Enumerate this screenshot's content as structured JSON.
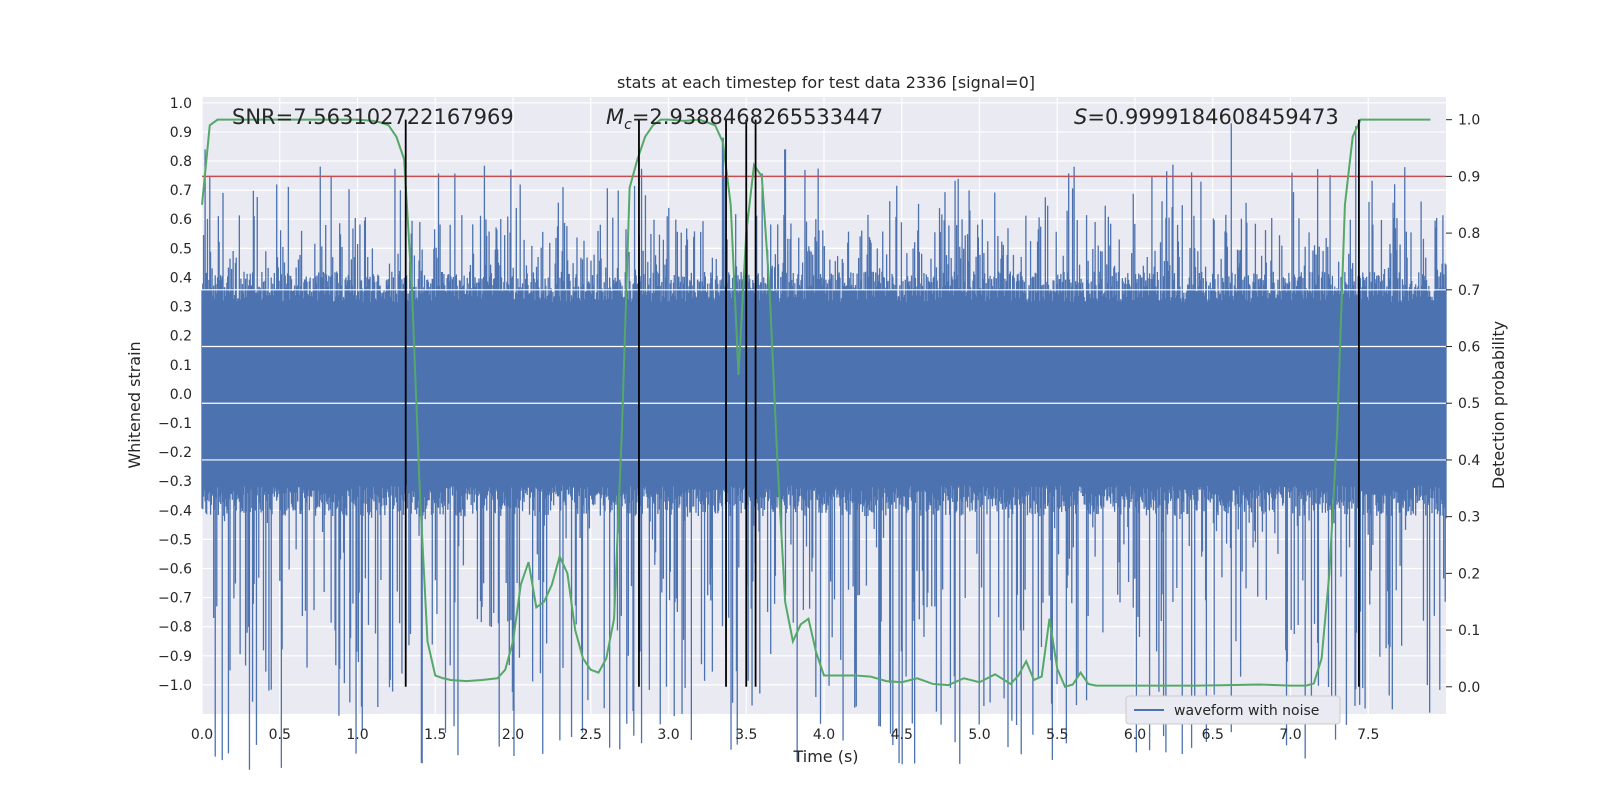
{
  "chart_data": {
    "type": "line",
    "title": "stats at each timestep for test data 2336 [signal=0]",
    "xlabel": "Time (s)",
    "ylabel": "Whitened strain",
    "y2label": "Detection probability",
    "xlim": [
      0.0,
      8.0
    ],
    "ylim": [
      -1.1,
      1.02
    ],
    "y2lim": [
      -0.048,
      1.04
    ],
    "xticks": [
      "0.0",
      "0.5",
      "1.0",
      "1.5",
      "2.0",
      "2.5",
      "3.0",
      "3.5",
      "4.0",
      "4.5",
      "5.0",
      "5.5",
      "6.0",
      "6.5",
      "7.0",
      "7.5"
    ],
    "yticks": [
      "1.0",
      "0.9",
      "0.8",
      "0.7",
      "0.6",
      "0.5",
      "0.4",
      "0.3",
      "0.2",
      "0.1",
      "0.0",
      "−0.1",
      "−0.2",
      "−0.3",
      "−0.4",
      "−0.5",
      "−0.6",
      "−0.7",
      "−0.8",
      "−0.9",
      "−1.0"
    ],
    "y2ticks": [
      "1.0",
      "0.9",
      "0.8",
      "0.7",
      "0.6",
      "0.5",
      "0.4",
      "0.3",
      "0.2",
      "0.1",
      "0.0"
    ],
    "grid": true,
    "legend": {
      "placement": "lower-right",
      "entries": [
        "waveform with noise"
      ]
    },
    "annotations": {
      "snr": "SNR=7.563102722167969",
      "mc_symbol": "M",
      "mc_sub": "c",
      "mc_value": "=2.9388468265533447",
      "s_symbol": "S",
      "s_value": "=0.9999184608459473"
    },
    "threshold": 0.9,
    "vlines_x": [
      1.31,
      2.81,
      3.37,
      3.5,
      3.56,
      7.44
    ],
    "strain_series": {
      "name": "waveform with noise",
      "x_range": [
        0.0,
        8.0
      ],
      "core_amplitude": 0.42,
      "typical_extent": [
        -0.55,
        0.6
      ],
      "peaks": [
        [
          0.02,
          0.84
        ],
        [
          2.74,
          -0.9
        ],
        [
          3.35,
          0.88
        ],
        [
          3.75,
          0.84
        ],
        [
          5.38,
          -0.98
        ],
        [
          6.62,
          0.93
        ],
        [
          6.65,
          -0.85
        ],
        [
          6.98,
          -0.92
        ],
        [
          7.42,
          0.92
        ]
      ]
    },
    "probability_series": {
      "name": "",
      "x": [
        0.0,
        0.05,
        0.1,
        0.2,
        0.4,
        0.6,
        0.8,
        1.0,
        1.1,
        1.15,
        1.2,
        1.25,
        1.3,
        1.35,
        1.4,
        1.45,
        1.5,
        1.55,
        1.6,
        1.7,
        1.8,
        1.9,
        1.95,
        2.0,
        2.05,
        2.1,
        2.15,
        2.2,
        2.25,
        2.3,
        2.35,
        2.4,
        2.45,
        2.5,
        2.55,
        2.6,
        2.65,
        2.7,
        2.75,
        2.8,
        2.85,
        2.9,
        2.95,
        3.0,
        3.1,
        3.2,
        3.3,
        3.35,
        3.4,
        3.45,
        3.5,
        3.55,
        3.6,
        3.65,
        3.7,
        3.75,
        3.8,
        3.85,
        3.9,
        3.95,
        4.0,
        4.1,
        4.2,
        4.3,
        4.4,
        4.5,
        4.6,
        4.7,
        4.8,
        4.9,
        5.0,
        5.1,
        5.2,
        5.25,
        5.3,
        5.35,
        5.4,
        5.45,
        5.5,
        5.55,
        5.6,
        5.65,
        5.7,
        5.75,
        5.8,
        5.85,
        5.9,
        6.0,
        6.2,
        6.4,
        6.6,
        6.8,
        7.0,
        7.1,
        7.15,
        7.2,
        7.25,
        7.3,
        7.35,
        7.4,
        7.45,
        7.5,
        7.55,
        7.7,
        7.9
      ],
      "y": [
        0.85,
        0.99,
        1.0,
        1.0,
        1.0,
        1.0,
        1.0,
        1.0,
        0.998,
        0.995,
        0.99,
        0.97,
        0.93,
        0.7,
        0.35,
        0.08,
        0.02,
        0.015,
        0.012,
        0.01,
        0.012,
        0.015,
        0.03,
        0.08,
        0.18,
        0.22,
        0.14,
        0.15,
        0.18,
        0.23,
        0.2,
        0.1,
        0.05,
        0.03,
        0.025,
        0.05,
        0.12,
        0.45,
        0.88,
        0.93,
        0.97,
        0.99,
        1.0,
        1.0,
        0.998,
        1.0,
        0.99,
        0.96,
        0.85,
        0.55,
        0.8,
        0.92,
        0.9,
        0.7,
        0.4,
        0.15,
        0.08,
        0.11,
        0.12,
        0.06,
        0.02,
        0.02,
        0.02,
        0.018,
        0.01,
        0.008,
        0.015,
        0.005,
        0.003,
        0.015,
        0.008,
        0.022,
        0.005,
        0.02,
        0.045,
        0.012,
        0.018,
        0.12,
        0.032,
        0.0,
        0.004,
        0.025,
        0.005,
        0.002,
        0.002,
        0.002,
        0.002,
        0.002,
        0.002,
        0.002,
        0.003,
        0.004,
        0.002,
        0.002,
        0.006,
        0.05,
        0.2,
        0.45,
        0.85,
        0.97,
        1.0,
        1.0,
        1.0,
        1.0,
        1.0
      ]
    },
    "colors": {
      "background": "#eaeaf2",
      "grid": "#ffffff",
      "strain": "#4c72b0",
      "probability": "#55a868",
      "threshold": "#c44e52",
      "vline": "#000000"
    }
  }
}
